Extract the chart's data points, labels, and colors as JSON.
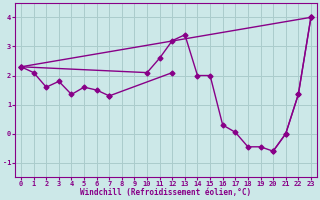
{
  "xlabel": "Windchill (Refroidissement éolien,°C)",
  "bg_color": "#cce8e8",
  "line_color": "#880088",
  "grid_color": "#aacccc",
  "xlim": [
    -0.5,
    23.5
  ],
  "ylim": [
    -1.5,
    4.5
  ],
  "yticks": [
    -1,
    0,
    1,
    2,
    3,
    4
  ],
  "xticks": [
    0,
    1,
    2,
    3,
    4,
    5,
    6,
    7,
    8,
    9,
    10,
    11,
    12,
    13,
    14,
    15,
    16,
    17,
    18,
    19,
    20,
    21,
    22,
    23
  ],
  "line1_x": [
    0,
    1,
    2,
    3,
    4,
    5,
    6,
    7,
    12
  ],
  "line1_y": [
    2.3,
    2.1,
    1.6,
    1.8,
    1.35,
    1.6,
    1.5,
    1.3,
    2.1
  ],
  "line2_x": [
    0,
    10,
    11,
    12,
    13,
    14,
    15,
    16,
    17,
    18,
    19,
    20,
    21,
    22,
    23
  ],
  "line2_y": [
    2.3,
    2.1,
    2.6,
    3.2,
    3.4,
    2.0,
    2.0,
    0.3,
    0.05,
    -0.45,
    -0.45,
    -0.6,
    0.0,
    1.35,
    4.0
  ],
  "line3_x": [
    0,
    23
  ],
  "line3_y": [
    2.3,
    4.0
  ],
  "line4_x": [
    20,
    21,
    22,
    23
  ],
  "line4_y": [
    -0.6,
    0.0,
    1.35,
    4.0
  ],
  "marker": "D",
  "marker_size": 2.5,
  "line_width": 1.0
}
